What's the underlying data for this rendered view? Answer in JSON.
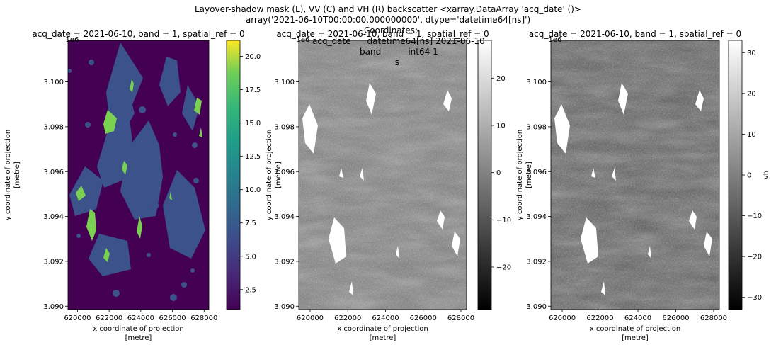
{
  "figure": {
    "suptitle_lines": [
      "Layover-shadow mask (L), VV (C) and VH (R) backscatter <xarray.DataArray 'acq_date' ()>",
      "array('2021-06-10T00:00:00.000000000', dtype='datetime64[ns]')"
    ],
    "overlap_text_lines": [
      "Coordinates:",
      "acq_date      datetime64[ns] 2021-06-10",
      "band          int64 1",
      "s"
    ]
  },
  "chart_data": [
    {
      "type": "heatmap",
      "panel": "left",
      "title": "acq_date = 2021-06-10, band = 1, spatial_ref = 0",
      "xlabel": [
        "x coordinate of projection",
        "[metre]"
      ],
      "ylabel": [
        "y coordinate of projection",
        "[metre]"
      ],
      "y_offset_text": "1e6",
      "xlim": [
        619400,
        628300
      ],
      "ylim": [
        3.08985,
        3.10185
      ],
      "xticks": [
        620000,
        622000,
        624000,
        626000,
        628000
      ],
      "xtick_labels": [
        "620000",
        "622000",
        "624000",
        "626000",
        "628000"
      ],
      "yticks": [
        3.09,
        3.092,
        3.094,
        3.096,
        3.098,
        3.1
      ],
      "ytick_labels": [
        "3.090",
        "3.092",
        "3.094",
        "3.096",
        "3.098",
        "3.100"
      ],
      "colormap": "viridis",
      "colorbar": {
        "label": "",
        "range": [
          1.0,
          21.2
        ],
        "ticks": [
          2.5,
          5.0,
          7.5,
          10.0,
          12.5,
          15.0,
          17.5,
          20.0
        ],
        "tick_labels": [
          "2.5",
          "5.0",
          "7.5",
          "10.0",
          "12.5",
          "15.0",
          "17.5",
          "20.0"
        ]
      },
      "classes": [
        {
          "value": 1,
          "color": "#440154"
        },
        {
          "value": 5,
          "color": "#3b528b"
        },
        {
          "value": 17,
          "color": "#7ad151"
        }
      ]
    },
    {
      "type": "heatmap",
      "panel": "center",
      "title": "acq_date = 2021-06-10, band = 1, spatial_ref = 0",
      "xlabel": [
        "x coordinate of projection",
        "[metre]"
      ],
      "ylabel": [
        "y coordinate of projection",
        "[metre]"
      ],
      "y_offset_text": "1e6",
      "xlim": [
        619400,
        628300
      ],
      "ylim": [
        3.08985,
        3.10185
      ],
      "xticks": [
        620000,
        622000,
        624000,
        626000,
        628000
      ],
      "xtick_labels": [
        "620000",
        "622000",
        "624000",
        "626000",
        "628000"
      ],
      "yticks": [
        3.09,
        3.092,
        3.094,
        3.096,
        3.098,
        3.1
      ],
      "ytick_labels": [
        "3.090",
        "3.092",
        "3.094",
        "3.096",
        "3.098",
        "3.100"
      ],
      "colormap": "gray",
      "colorbar": {
        "label": "",
        "range": [
          -29,
          28
        ],
        "ticks": [
          -20,
          -10,
          0,
          10,
          20
        ],
        "tick_labels": [
          "−20",
          "−10",
          "0",
          "10",
          "20"
        ]
      }
    },
    {
      "type": "heatmap",
      "panel": "right",
      "title": "acq_date = 2021-06-10, band = 1, spatial_ref = 0",
      "xlabel": [
        "x coordinate of projection",
        "[metre]"
      ],
      "ylabel": [
        "y coordinate of projection",
        "[metre]"
      ],
      "y_offset_text": "1e6",
      "xlim": [
        619400,
        628300
      ],
      "ylim": [
        3.08985,
        3.10185
      ],
      "xticks": [
        620000,
        622000,
        624000,
        626000,
        628000
      ],
      "xtick_labels": [
        "620000",
        "622000",
        "624000",
        "626000",
        "628000"
      ],
      "yticks": [
        3.09,
        3.092,
        3.094,
        3.096,
        3.098,
        3.1
      ],
      "ytick_labels": [
        "3.090",
        "3.092",
        "3.094",
        "3.096",
        "3.098",
        "3.100"
      ],
      "colormap": "gray",
      "colorbar": {
        "label": "vh",
        "range": [
          -33,
          33
        ],
        "ticks": [
          -30,
          -20,
          -10,
          0,
          10,
          20,
          30
        ],
        "tick_labels": [
          "−30",
          "−20",
          "−10",
          "0",
          "10",
          "20",
          "30"
        ]
      }
    }
  ]
}
